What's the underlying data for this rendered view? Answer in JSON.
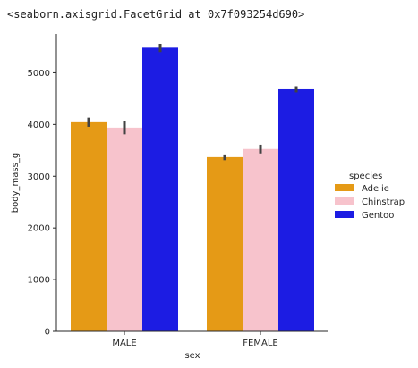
{
  "output_text": "<seaborn.axisgrid.FacetGrid at 0x7f093254d690>",
  "chart_data": {
    "type": "bar",
    "categories": [
      "MALE",
      "FEMALE"
    ],
    "xlabel": "sex",
    "ylabel": "body_mass_g",
    "ylim": [
      0,
      5750
    ],
    "yticks": [
      0,
      1000,
      2000,
      3000,
      4000,
      5000
    ],
    "grid": false,
    "legend": {
      "title": "species",
      "placement": "right"
    },
    "series": [
      {
        "name": "Adelie",
        "color": "#e59a16",
        "values": [
          4043,
          3369
        ],
        "ci": [
          [
            3955,
            4133
          ],
          [
            3310,
            3421
          ]
        ]
      },
      {
        "name": "Chinstrap",
        "color": "#f7c3cc",
        "values": [
          3939,
          3527
        ],
        "ci": [
          [
            3810,
            4070
          ],
          [
            3440,
            3610
          ]
        ]
      },
      {
        "name": "Gentoo",
        "color": "#1c1ce3",
        "values": [
          5485,
          4680
        ],
        "ci": [
          [
            5400,
            5560
          ],
          [
            4620,
            4740
          ]
        ]
      }
    ]
  }
}
